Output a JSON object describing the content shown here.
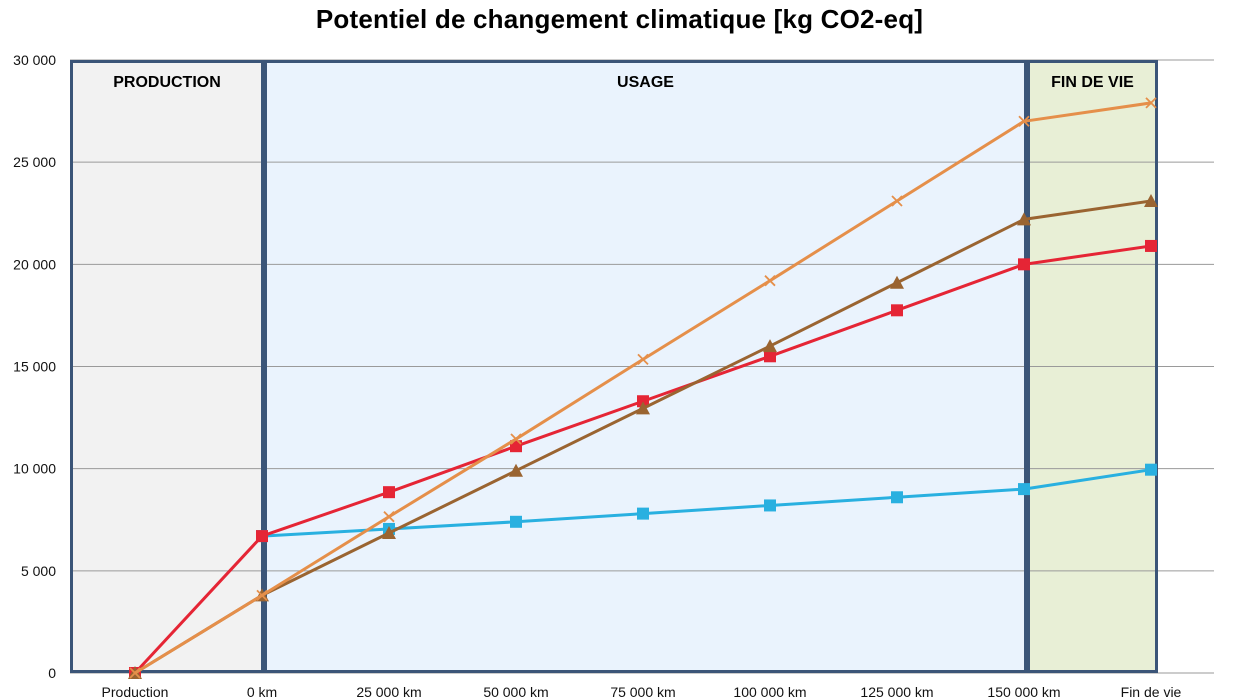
{
  "chart_data": {
    "type": "line",
    "title": "Potentiel de changement climatique [kg CO2-eq]",
    "xlabel": "",
    "ylabel": "",
    "categories": [
      "Production",
      "0 km",
      "25 000 km",
      "50 000 km",
      "75 000 km",
      "100 000 km",
      "125 000 km",
      "150 000 km",
      "Fin de vie"
    ],
    "ylim": [
      0,
      30000
    ],
    "yticks": [
      0,
      5000,
      10000,
      15000,
      20000,
      25000,
      30000
    ],
    "ytick_labels": [
      "0",
      "5 000",
      "10 000",
      "15 000",
      "20 000",
      "25 000",
      "30 000"
    ],
    "grid": true,
    "phases": [
      {
        "label": "PRODUCTION",
        "from": 0,
        "to": 1,
        "color": "#f2f2f2"
      },
      {
        "label": "USAGE",
        "from": 1,
        "to": 7,
        "color": "#eaf3fd"
      },
      {
        "label": "FIN DE VIE",
        "from": 7,
        "to": 8,
        "color": "#e8efd6"
      }
    ],
    "series": [
      {
        "color": "#29b0e0",
        "marker": "square",
        "values": [
          null,
          6700,
          7050,
          7400,
          7800,
          8200,
          8600,
          9000,
          9950
        ]
      },
      {
        "color": "#e52535",
        "marker": "square",
        "values": [
          0,
          6700,
          8850,
          11100,
          13300,
          15500,
          17750,
          20000,
          20900
        ]
      },
      {
        "color": "#9a6431",
        "marker": "triangle",
        "values": [
          0,
          3800,
          6850,
          9900,
          12950,
          16000,
          19100,
          22200,
          23100
        ]
      },
      {
        "color": "#e58f4a",
        "marker": "x",
        "values": [
          0,
          3800,
          7650,
          11450,
          15350,
          19200,
          23100,
          27000,
          27900
        ]
      }
    ]
  }
}
